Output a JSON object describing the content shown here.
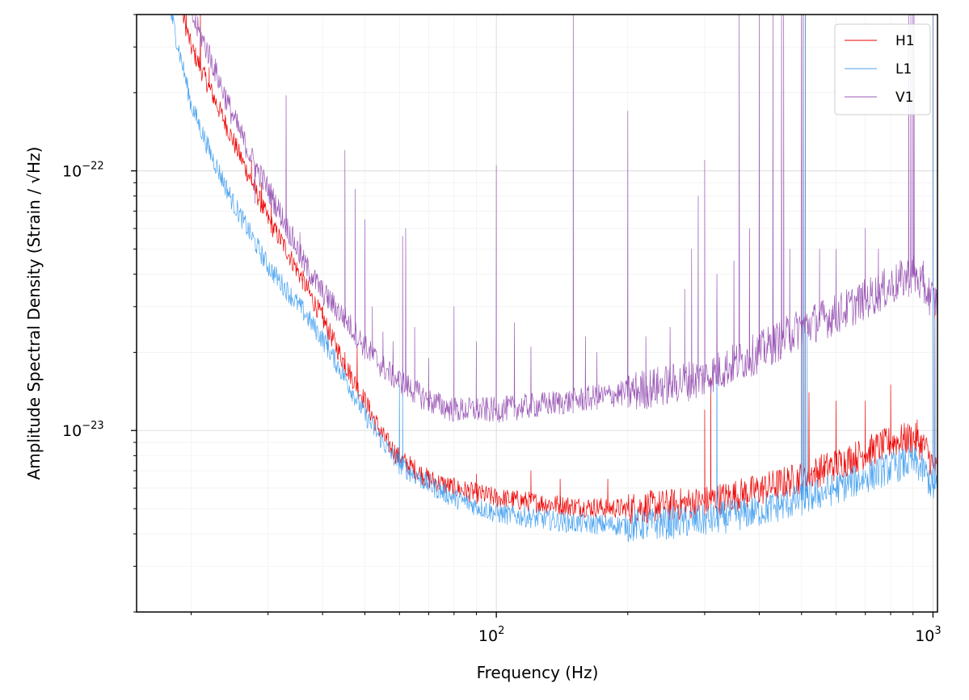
{
  "chart_data": {
    "type": "line",
    "title": "",
    "xlabel": "Frequency (Hz)",
    "ylabel": "Amplitude Spectral Density (Strain / √Hz)",
    "xscale": "log",
    "yscale": "log",
    "xlim": [
      15,
      1024
    ],
    "ylim": [
      2e-24,
      4e-22
    ],
    "grid": true,
    "legend_position": "top-right",
    "x_tick_labels": [
      {
        "value": 100,
        "base": "10",
        "exp": "2"
      },
      {
        "value": 1000,
        "base": "10",
        "exp": "3"
      }
    ],
    "y_tick_labels": [
      {
        "value": 1e-22,
        "base": "10",
        "exp": "−22"
      },
      {
        "value": 1e-23,
        "base": "10",
        "exp": "−23"
      }
    ],
    "series": [
      {
        "name": "H1",
        "color": "#ee0000",
        "baseline": [
          [
            15,
            6e-21
          ],
          [
            18,
            6e-22
          ],
          [
            20,
            3e-22
          ],
          [
            22,
            2.1e-22
          ],
          [
            25,
            1.3e-22
          ],
          [
            28,
            8.5e-23
          ],
          [
            30,
            6.5e-23
          ],
          [
            33,
            5e-23
          ],
          [
            36,
            3.8e-23
          ],
          [
            40,
            2.7e-23
          ],
          [
            45,
            1.8e-23
          ],
          [
            50,
            1.3e-23
          ],
          [
            55,
            9.5e-24
          ],
          [
            60,
            7.8e-24
          ],
          [
            70,
            6.5e-24
          ],
          [
            80,
            6e-24
          ],
          [
            100,
            5.5e-24
          ],
          [
            150,
            5.1e-24
          ],
          [
            200,
            5e-24
          ],
          [
            300,
            5.3e-24
          ],
          [
            400,
            5.9e-24
          ],
          [
            500,
            6.6e-24
          ],
          [
            600,
            7.4e-24
          ],
          [
            700,
            8.2e-24
          ],
          [
            800,
            9e-24
          ],
          [
            900,
            9.4e-24
          ],
          [
            960,
            8.6e-24
          ],
          [
            1000,
            7.3e-24
          ],
          [
            1024,
            6.8e-24
          ]
        ],
        "noise": 0.04,
        "lines": [
          [
            19.5,
            4e-22
          ],
          [
            21,
            4e-22
          ],
          [
            22,
            2.5e-22
          ],
          [
            24,
            1.6e-22
          ],
          [
            27.5,
            1.1e-22
          ],
          [
            29,
            9e-23
          ],
          [
            30.5,
            7.5e-23
          ],
          [
            35,
            4.2e-23
          ],
          [
            36,
            3.8e-23
          ],
          [
            37.5,
            3.3e-23
          ],
          [
            40,
            3e-23
          ],
          [
            45,
            2e-23
          ],
          [
            48,
            2.1e-23
          ],
          [
            60,
            8.2e-24
          ],
          [
            90,
            6.8e-24
          ],
          [
            120,
            7e-24
          ],
          [
            140,
            6.5e-24
          ],
          [
            180,
            6.5e-24
          ],
          [
            300,
            1.2e-23
          ],
          [
            310,
            1.6e-23
          ],
          [
            500,
            4e-22
          ],
          [
            505,
            4e-22
          ],
          [
            510,
            4e-22
          ],
          [
            520,
            1.4e-23
          ],
          [
            600,
            1.3e-23
          ],
          [
            700,
            1.3e-23
          ],
          [
            800,
            1.5e-23
          ],
          [
            920,
            1.1e-23
          ],
          [
            1000,
            4e-22
          ],
          [
            1010,
            2.9e-23
          ]
        ]
      },
      {
        "name": "L1",
        "color": "#4aa3f0",
        "baseline": [
          [
            15,
            6e-21
          ],
          [
            18,
            4e-22
          ],
          [
            20,
            1.8e-22
          ],
          [
            22,
            1.2e-22
          ],
          [
            25,
            7.5e-23
          ],
          [
            28,
            5.3e-23
          ],
          [
            30,
            4.3e-23
          ],
          [
            33,
            3.5e-23
          ],
          [
            36,
            2.9e-23
          ],
          [
            40,
            2.25e-23
          ],
          [
            45,
            1.6e-23
          ],
          [
            50,
            1.15e-23
          ],
          [
            55,
            9e-24
          ],
          [
            60,
            7.4e-24
          ],
          [
            70,
            6.2e-24
          ],
          [
            80,
            5.5e-24
          ],
          [
            100,
            4.8e-24
          ],
          [
            150,
            4.4e-24
          ],
          [
            200,
            4.3e-24
          ],
          [
            300,
            4.5e-24
          ],
          [
            400,
            4.9e-24
          ],
          [
            500,
            5.4e-24
          ],
          [
            600,
            6e-24
          ],
          [
            700,
            6.6e-24
          ],
          [
            800,
            7.2e-24
          ],
          [
            900,
            7.6e-24
          ],
          [
            960,
            6.9e-24
          ],
          [
            1000,
            6e-24
          ],
          [
            1024,
            5.9e-24
          ]
        ],
        "noise": 0.04,
        "lines": [
          [
            41,
            2.4e-23
          ],
          [
            60,
            1.5e-23
          ],
          [
            61,
            1.75e-23
          ],
          [
            320,
            3.1e-23
          ],
          [
            500,
            3.5e-23
          ],
          [
            505,
            4e-22
          ],
          [
            510,
            4e-22
          ],
          [
            515,
            2.4e-23
          ],
          [
            1000,
            4e-22
          ],
          [
            1010,
            2.7e-23
          ]
        ]
      },
      {
        "name": "V1",
        "color": "#9b59b6",
        "baseline": [
          [
            15,
            6e-21
          ],
          [
            18,
            8e-22
          ],
          [
            20,
            4e-22
          ],
          [
            22,
            2.8e-22
          ],
          [
            25,
            1.6e-22
          ],
          [
            28,
            1.05e-22
          ],
          [
            30,
            8.5e-23
          ],
          [
            33,
            6.2e-23
          ],
          [
            36,
            4.5e-23
          ],
          [
            40,
            3.4e-23
          ],
          [
            45,
            2.7e-23
          ],
          [
            50,
            2.1e-23
          ],
          [
            55,
            1.75e-23
          ],
          [
            60,
            1.55e-23
          ],
          [
            70,
            1.3e-23
          ],
          [
            80,
            1.2e-23
          ],
          [
            100,
            1.2e-23
          ],
          [
            150,
            1.3e-23
          ],
          [
            200,
            1.4e-23
          ],
          [
            300,
            1.6e-23
          ],
          [
            400,
            2e-23
          ],
          [
            500,
            2.5e-23
          ],
          [
            600,
            2.8e-23
          ],
          [
            700,
            3.2e-23
          ],
          [
            800,
            3.6e-23
          ],
          [
            900,
            4e-23
          ],
          [
            960,
            3.5e-23
          ],
          [
            1000,
            3.2e-23
          ],
          [
            1024,
            3.1e-23
          ]
        ],
        "noise": 0.05,
        "lines": [
          [
            28,
            7.5e-23
          ],
          [
            33,
            1.95e-22
          ],
          [
            35.5,
            5.8e-23
          ],
          [
            38,
            4e-23
          ],
          [
            41,
            3.3e-23
          ],
          [
            45,
            1.2e-22
          ],
          [
            47.5,
            8.5e-23
          ],
          [
            50,
            6.5e-23
          ],
          [
            52,
            3e-23
          ],
          [
            55,
            2.4e-23
          ],
          [
            58,
            2.2e-23
          ],
          [
            61,
            5.6e-23
          ],
          [
            62,
            6e-23
          ],
          [
            65,
            2.5e-23
          ],
          [
            70,
            1.9e-23
          ],
          [
            80,
            3e-23
          ],
          [
            90,
            2.2e-23
          ],
          [
            100,
            1.05e-22
          ],
          [
            110,
            2.6e-23
          ],
          [
            120,
            2.1e-23
          ],
          [
            150,
            4e-22
          ],
          [
            160,
            2.3e-23
          ],
          [
            170,
            2e-23
          ],
          [
            200,
            1.7e-22
          ],
          [
            220,
            2.3e-23
          ],
          [
            250,
            2.5e-23
          ],
          [
            270,
            3.5e-23
          ],
          [
            280,
            5e-23
          ],
          [
            290,
            8e-23
          ],
          [
            300,
            1.1e-22
          ],
          [
            320,
            4e-23
          ],
          [
            350,
            4.5e-23
          ],
          [
            360,
            4e-22
          ],
          [
            380,
            6e-23
          ],
          [
            400,
            4e-22
          ],
          [
            430,
            4e-22
          ],
          [
            450,
            4e-22
          ],
          [
            455,
            4e-22
          ],
          [
            470,
            5e-23
          ],
          [
            500,
            4e-22
          ],
          [
            550,
            5e-23
          ],
          [
            600,
            5e-23
          ],
          [
            700,
            6e-23
          ],
          [
            750,
            5e-23
          ],
          [
            880,
            4e-22
          ],
          [
            890,
            4e-22
          ],
          [
            900,
            4e-22
          ],
          [
            905,
            4e-22
          ],
          [
            950,
            4.5e-23
          ]
        ]
      }
    ]
  }
}
